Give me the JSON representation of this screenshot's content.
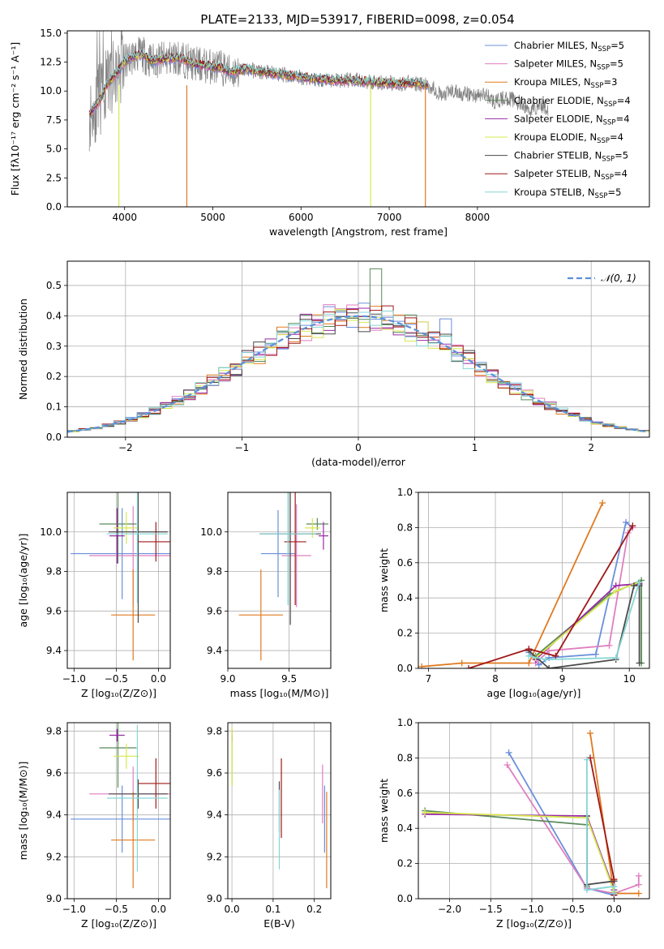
{
  "figure_title": "PLATE=2133, MJD=53917, FIBERID=0098, z=0.054",
  "colors": {
    "chabrier_miles": "#6a8fdb",
    "salpeter_miles": "#e07fc0",
    "kroupa_miles": "#e07a1f",
    "chabrier_elodie": "#5a8a5a",
    "salpeter_elodie": "#9a2aa8",
    "kroupa_elodie": "#d6e84e",
    "chabrier_stelib": "#4a4a4a",
    "salpeter_stelib": "#a01818",
    "kroupa_stelib": "#86d6d6",
    "data": "#808080",
    "gaussian": "#5b8fd6"
  },
  "chart_data": [
    {
      "id": "spectrum",
      "type": "line",
      "title": "PLATE=2133, MJD=53917, FIBERID=0098, z=0.054",
      "xlabel": "wavelength [Angstrom, rest frame]",
      "ylabel": "Flux [fλ10⁻¹⁷ erg cm⁻² s⁻¹ A⁻¹]",
      "xlim": [
        3350,
        9950
      ],
      "ylim": [
        0,
        15.2
      ],
      "xticks": [
        4000,
        5000,
        6000,
        7000,
        8000
      ],
      "yticks": [
        0.0,
        2.5,
        5.0,
        7.5,
        10.0,
        12.5,
        15.0
      ],
      "xtick_labels": [
        "4000",
        "5000",
        "6000",
        "7000",
        "8000"
      ],
      "ytick_labels": [
        "0.0",
        "2.5",
        "5.0",
        "7.5",
        "10.0",
        "12.5",
        "15.0"
      ],
      "grid": false,
      "legend_position": "top-right",
      "legend": [
        {
          "label": "Chabrier MILES, N",
          "sub": "SSP",
          "tail": "=5"
        },
        {
          "label": "Salpeter MILES, N",
          "sub": "SSP",
          "tail": "=5"
        },
        {
          "label": "Kroupa MILES, N",
          "sub": "SSP",
          "tail": "=3"
        },
        {
          "label": "Chabrier ELODIE, N",
          "sub": "SSP",
          "tail": "=4"
        },
        {
          "label": "Salpeter ELODIE, N",
          "sub": "SSP",
          "tail": "=4"
        },
        {
          "label": "Kroupa ELODIE, N",
          "sub": "SSP",
          "tail": "=4"
        },
        {
          "label": "Chabrier STELIB, N",
          "sub": "SSP",
          "tail": "=5"
        },
        {
          "label": "Salpeter STELIB, N",
          "sub": "SSP",
          "tail": "=4"
        },
        {
          "label": "Kroupa STELIB, N",
          "sub": "SSP",
          "tail": "=5"
        }
      ],
      "data_continuum": [
        [
          3600,
          8.0
        ],
        [
          3700,
          9.0
        ],
        [
          3800,
          10.5
        ],
        [
          3900,
          11.5
        ],
        [
          4000,
          12.5
        ],
        [
          4100,
          13.0
        ],
        [
          4200,
          13.2
        ],
        [
          4300,
          12.6
        ],
        [
          4400,
          12.7
        ],
        [
          4500,
          12.8
        ],
        [
          4600,
          12.9
        ],
        [
          4700,
          12.6
        ],
        [
          4800,
          12.3
        ],
        [
          4900,
          12.2
        ],
        [
          5000,
          12.1
        ],
        [
          5100,
          12.0
        ],
        [
          5200,
          11.6
        ],
        [
          5300,
          11.8
        ],
        [
          5400,
          11.9
        ],
        [
          5500,
          11.7
        ],
        [
          5600,
          11.6
        ],
        [
          5700,
          11.5
        ],
        [
          5800,
          11.4
        ],
        [
          5900,
          11.3
        ],
        [
          6000,
          11.2
        ],
        [
          6100,
          11.1
        ],
        [
          6200,
          11.0
        ],
        [
          6300,
          11.0
        ],
        [
          6400,
          10.9
        ],
        [
          6500,
          10.9
        ],
        [
          6600,
          10.9
        ],
        [
          6700,
          10.8
        ],
        [
          6800,
          10.8
        ],
        [
          6900,
          10.7
        ],
        [
          7000,
          10.7
        ],
        [
          7100,
          10.6
        ],
        [
          7200,
          10.7
        ],
        [
          7300,
          10.7
        ],
        [
          7400,
          10.5
        ],
        [
          7500,
          10.3
        ],
        [
          7600,
          9.5
        ],
        [
          7700,
          10.0
        ],
        [
          7800,
          9.8
        ],
        [
          7900,
          9.7
        ],
        [
          8000,
          9.6
        ],
        [
          8100,
          9.7
        ],
        [
          8200,
          9.0
        ],
        [
          8300,
          9.4
        ],
        [
          8400,
          9.3
        ],
        [
          8500,
          8.8
        ],
        [
          8600,
          8.3
        ],
        [
          8700,
          8.8
        ],
        [
          8800,
          8.5
        ]
      ],
      "model_extent": [
        3600,
        7450
      ]
    },
    {
      "id": "residuals",
      "type": "histogram",
      "xlabel": "(data-model)/error",
      "ylabel": "Normed distribution",
      "xlim": [
        -2.5,
        2.5
      ],
      "ylim": [
        0,
        0.58
      ],
      "xticks": [
        -2,
        -1,
        0,
        1,
        2
      ],
      "yticks": [
        0.0,
        0.1,
        0.2,
        0.3,
        0.4,
        0.5
      ],
      "xtick_labels": [
        "−2",
        "−1",
        "0",
        "1",
        "2"
      ],
      "ytick_labels": [
        "0.0",
        "0.1",
        "0.2",
        "0.3",
        "0.4",
        "0.5"
      ],
      "grid": true,
      "legend_position": "top-right",
      "legend_label": "𝒩(0, 1)",
      "bin_width": 0.1
    },
    {
      "id": "age-vs-Z",
      "type": "errorbar",
      "xlabel": "Z [log₁₀(Z/Z⊙)]",
      "ylabel": "age  [log₁₀(age/yr)]",
      "xlim": [
        -1.08,
        0.14
      ],
      "ylim": [
        9.31,
        10.2
      ],
      "xticks": [
        -1.0,
        -0.5,
        0.0
      ],
      "yticks": [
        9.4,
        9.6,
        9.8,
        10.0
      ],
      "xtick_labels": [
        "−1.0",
        "−0.5",
        "0.0"
      ],
      "ytick_labels": [
        "9.4",
        "9.6",
        "9.8",
        "10.0"
      ],
      "grid": true,
      "points": [
        {
          "model": "chabrier_miles",
          "x": -0.43,
          "xerr": 0.61,
          "y": 9.89,
          "yerr": 0.23
        },
        {
          "model": "salpeter_miles",
          "x": -0.3,
          "xerr": 0.52,
          "y": 9.88,
          "yerr": 0.25
        },
        {
          "model": "kroupa_miles",
          "x": -0.3,
          "xerr": 0.26,
          "y": 9.58,
          "yerr": 0.23
        },
        {
          "model": "chabrier_elodie",
          "x": -0.48,
          "xerr": 0.22,
          "y": 10.04,
          "yerr": 0.2
        },
        {
          "model": "salpeter_elodie",
          "x": -0.49,
          "xerr": 0.09,
          "y": 9.98,
          "yerr": 0.14
        },
        {
          "model": "kroupa_elodie",
          "x": -0.38,
          "xerr": 0.15,
          "y": 10.02,
          "yerr": 0.08
        },
        {
          "model": "chabrier_stelib",
          "x": -0.24,
          "xerr": 0.35,
          "y": 10.0,
          "yerr": 0.46
        },
        {
          "model": "salpeter_stelib",
          "x": -0.03,
          "xerr": 0.22,
          "y": 9.95,
          "yerr": 0.1
        },
        {
          "model": "kroupa_stelib",
          "x": -0.25,
          "xerr": 0.36,
          "y": 9.99,
          "yerr": 0.35
        }
      ]
    },
    {
      "id": "age-vs-mass",
      "type": "errorbar",
      "xlabel": "mass [log₁₀(M/M⊙)]",
      "ylabel": "",
      "xlim": [
        9.0,
        9.84
      ],
      "ylim": [
        9.31,
        10.2
      ],
      "xticks": [
        9.0,
        9.5
      ],
      "yticks": [
        9.4,
        9.6,
        9.8,
        10.0
      ],
      "xtick_labels": [
        "9.0",
        "9.5"
      ],
      "ytick_labels": [
        "9.4",
        "9.6",
        "9.8",
        "10.0"
      ],
      "grid": true,
      "points": [
        {
          "model": "chabrier_miles",
          "x": 9.41,
          "xerr": 0.14,
          "y": 9.89,
          "yerr": 0.22
        },
        {
          "model": "salpeter_miles",
          "x": 9.56,
          "xerr": 0.12,
          "y": 9.88,
          "yerr": 0.26
        },
        {
          "model": "kroupa_miles",
          "x": 9.27,
          "xerr": 0.18,
          "y": 9.58,
          "yerr": 0.23
        },
        {
          "model": "chabrier_elodie",
          "x": 9.73,
          "xerr": 0.09,
          "y": 10.04,
          "yerr": 0.03
        },
        {
          "model": "salpeter_elodie",
          "x": 9.78,
          "xerr": 0.04,
          "y": 9.98,
          "yerr": 0.07
        },
        {
          "model": "kroupa_elodie",
          "x": 9.69,
          "xerr": 0.06,
          "y": 10.02,
          "yerr": 0.05
        },
        {
          "model": "chabrier_stelib",
          "x": 9.51,
          "xerr": 0.25,
          "y": 9.99,
          "yerr": 0.46
        },
        {
          "model": "salpeter_stelib",
          "x": 9.55,
          "xerr": 0.09,
          "y": 9.95,
          "yerr": 0.32
        },
        {
          "model": "kroupa_stelib",
          "x": 9.49,
          "xerr": 0.23,
          "y": 9.99,
          "yerr": 0.36
        }
      ]
    },
    {
      "id": "massweight-vs-age",
      "type": "line",
      "xlabel": "age  [log₁₀(age/yr)]",
      "ylabel": "mass weight",
      "xlim": [
        6.85,
        10.3
      ],
      "ylim": [
        0,
        1.0
      ],
      "xticks": [
        7,
        8,
        9,
        10
      ],
      "yticks": [
        0.0,
        0.2,
        0.4,
        0.6,
        0.8,
        1.0
      ],
      "xtick_labels": [
        "7",
        "8",
        "9",
        "10"
      ],
      "ytick_labels": [
        "0.0",
        "0.2",
        "0.4",
        "0.6",
        "0.8",
        "1.0"
      ],
      "grid": true,
      "series": [
        {
          "model": "chabrier_miles",
          "x": [
            8.5,
            8.65,
            8.8,
            9.5,
            9.95,
            10.05
          ],
          "y": [
            0.09,
            0.02,
            0.06,
            0.08,
            0.83,
            0.8
          ]
        },
        {
          "model": "salpeter_miles",
          "x": [
            8.6,
            8.8,
            9.7,
            9.98,
            10.05
          ],
          "y": [
            0.03,
            0.1,
            0.13,
            0.77,
            0.8
          ]
        },
        {
          "model": "kroupa_miles",
          "x": [
            6.9,
            7.5,
            8.5,
            9.6
          ],
          "y": [
            0.01,
            0.03,
            0.03,
            0.94
          ]
        },
        {
          "model": "chabrier_elodie",
          "x": [
            8.6,
            9.7,
            10.18,
            10.18
          ],
          "y": [
            0.07,
            0.42,
            0.5,
            0.03
          ]
        },
        {
          "model": "salpeter_elodie",
          "x": [
            8.6,
            9.8,
            10.15
          ],
          "y": [
            0.05,
            0.47,
            0.48
          ]
        },
        {
          "model": "kroupa_elodie",
          "x": [
            8.6,
            9.8,
            10.15
          ],
          "y": [
            0.06,
            0.44,
            0.49
          ]
        },
        {
          "model": "chabrier_stelib",
          "x": [
            8.5,
            8.8,
            9.8,
            10.07,
            10.15,
            10.15
          ],
          "y": [
            0.1,
            0.0,
            0.05,
            0.47,
            0.47,
            0.03
          ]
        },
        {
          "model": "salpeter_stelib",
          "x": [
            7.6,
            8.5,
            8.9,
            10.05
          ],
          "y": [
            0.0,
            0.11,
            0.07,
            0.81
          ]
        },
        {
          "model": "kroupa_stelib",
          "x": [
            8.5,
            8.75,
            9.8,
            10.15
          ],
          "y": [
            0.07,
            0.05,
            0.06,
            0.49
          ]
        }
      ]
    },
    {
      "id": "mass-vs-Z",
      "type": "errorbar",
      "xlabel": "Z [log₁₀(Z/Z⊙)]",
      "ylabel": "mass [log₁₀(M/M⊙)]",
      "xlim": [
        -1.08,
        0.14
      ],
      "ylim": [
        9.0,
        9.84
      ],
      "xticks": [
        -1.0,
        -0.5,
        0.0
      ],
      "yticks": [
        9.0,
        9.2,
        9.4,
        9.6,
        9.8
      ],
      "xtick_labels": [
        "−1.0",
        "−0.5",
        "0.0"
      ],
      "ytick_labels": [
        "9.0",
        "9.2",
        "9.4",
        "9.6",
        "9.8"
      ],
      "grid": true,
      "points": [
        {
          "model": "chabrier_miles",
          "x": -0.43,
          "xerr": 0.61,
          "y": 9.38,
          "yerr": 0.16
        },
        {
          "model": "salpeter_miles",
          "x": -0.3,
          "xerr": 0.52,
          "y": 9.5,
          "yerr": 0.13
        },
        {
          "model": "kroupa_miles",
          "x": -0.3,
          "xerr": 0.26,
          "y": 9.28,
          "yerr": 0.23
        },
        {
          "model": "chabrier_elodie",
          "x": -0.48,
          "xerr": 0.22,
          "y": 9.72,
          "yerr": 0.19
        },
        {
          "model": "salpeter_elodie",
          "x": -0.49,
          "xerr": 0.09,
          "y": 9.78,
          "yerr": 0.03
        },
        {
          "model": "kroupa_elodie",
          "x": -0.38,
          "xerr": 0.15,
          "y": 9.68,
          "yerr": 0.06
        },
        {
          "model": "chabrier_stelib",
          "x": -0.24,
          "xerr": 0.35,
          "y": 9.5,
          "yerr": 0.07
        },
        {
          "model": "salpeter_stelib",
          "x": -0.03,
          "xerr": 0.22,
          "y": 9.55,
          "yerr": 0.12
        },
        {
          "model": "kroupa_stelib",
          "x": -0.25,
          "xerr": 0.36,
          "y": 9.48,
          "yerr": 0.35
        }
      ]
    },
    {
      "id": "mass-vs-EBV",
      "type": "errorbar",
      "xlabel": "E(B-V)",
      "ylabel": "",
      "xlim": [
        -0.01,
        0.24
      ],
      "ylim": [
        9.0,
        9.84
      ],
      "xticks": [
        0.0,
        0.1,
        0.2
      ],
      "yticks": [
        9.0,
        9.2,
        9.4,
        9.6,
        9.8
      ],
      "xtick_labels": [
        "0.0",
        "0.1",
        "0.2"
      ],
      "ytick_labels": [
        "9.0",
        "9.2",
        "9.4",
        "9.6",
        "9.8"
      ],
      "grid": true,
      "points": [
        {
          "model": "chabrier_miles",
          "x": 0.225,
          "xerr": 0.0,
          "y": 9.38,
          "yerr": 0.16
        },
        {
          "model": "salpeter_miles",
          "x": 0.22,
          "xerr": 0.0,
          "y": 9.5,
          "yerr": 0.14
        },
        {
          "model": "kroupa_miles",
          "x": 0.23,
          "xerr": 0.0,
          "y": 9.28,
          "yerr": 0.23
        },
        {
          "model": "chabrier_elodie",
          "x": 0.0,
          "xerr": 0.0,
          "y": 9.66,
          "yerr": 0.12
        },
        {
          "model": "salpeter_elodie",
          "x": 0.0,
          "xerr": 0.0,
          "y": 9.78,
          "yerr": 0.03
        },
        {
          "model": "kroupa_elodie",
          "x": 0.0,
          "xerr": 0.0,
          "y": 9.68,
          "yerr": 0.14
        },
        {
          "model": "chabrier_stelib",
          "x": 0.115,
          "xerr": 0.0,
          "y": 9.44,
          "yerr": 0.12
        },
        {
          "model": "salpeter_stelib",
          "x": 0.12,
          "xerr": 0.0,
          "y": 9.48,
          "yerr": 0.19
        },
        {
          "model": "kroupa_stelib",
          "x": 0.115,
          "xerr": 0.0,
          "y": 9.33,
          "yerr": 0.19
        }
      ]
    },
    {
      "id": "massweight-vs-Z",
      "type": "line",
      "xlabel": "Z [log₁₀(Z/Z⊙)]",
      "ylabel": "mass weight",
      "xlim": [
        -2.38,
        0.43
      ],
      "ylim": [
        0,
        1.0
      ],
      "xticks": [
        -2.0,
        -1.5,
        -1.0,
        -0.5,
        0.0
      ],
      "yticks": [
        0.0,
        0.2,
        0.4,
        0.6,
        0.8,
        1.0
      ],
      "xtick_labels": [
        "−2.0",
        "−1.5",
        "−1.0",
        "−0.5",
        "0.0"
      ],
      "ytick_labels": [
        "0.0",
        "0.2",
        "0.4",
        "0.6",
        "0.8",
        "1.0"
      ],
      "grid": true,
      "series": [
        {
          "model": "chabrier_miles",
          "x": [
            -1.28,
            -0.33,
            0.0,
            0.0
          ],
          "y": [
            0.83,
            0.06,
            0.02,
            0.1
          ]
        },
        {
          "model": "salpeter_miles",
          "x": [
            -1.3,
            -0.33,
            0.0,
            0.3,
            0.3
          ],
          "y": [
            0.76,
            0.06,
            0.03,
            0.08,
            0.13
          ]
        },
        {
          "model": "kroupa_miles",
          "x": [
            -0.29,
            0.0,
            0.3
          ],
          "y": [
            0.94,
            0.03,
            0.03
          ]
        },
        {
          "model": "chabrier_elodie",
          "x": [
            -2.3,
            -0.33,
            -0.33
          ],
          "y": [
            0.5,
            0.42,
            0.07
          ]
        },
        {
          "model": "salpeter_elodie",
          "x": [
            -2.3,
            -0.33,
            0.0
          ],
          "y": [
            0.48,
            0.47,
            0.05
          ]
        },
        {
          "model": "kroupa_elodie",
          "x": [
            -2.3,
            -0.33,
            0.0
          ],
          "y": [
            0.49,
            0.46,
            0.04
          ]
        },
        {
          "model": "chabrier_stelib",
          "x": [
            -0.33,
            -0.33,
            0.0,
            0.0
          ],
          "y": [
            0.47,
            0.08,
            0.1,
            0.03
          ]
        },
        {
          "model": "salpeter_stelib",
          "x": [
            -0.29,
            0.0,
            0.0
          ],
          "y": [
            0.8,
            0.11,
            0.02
          ]
        },
        {
          "model": "kroupa_stelib",
          "x": [
            -0.33,
            -0.33,
            0.0,
            0.0
          ],
          "y": [
            0.79,
            0.05,
            0.07,
            0.03
          ]
        }
      ]
    }
  ]
}
